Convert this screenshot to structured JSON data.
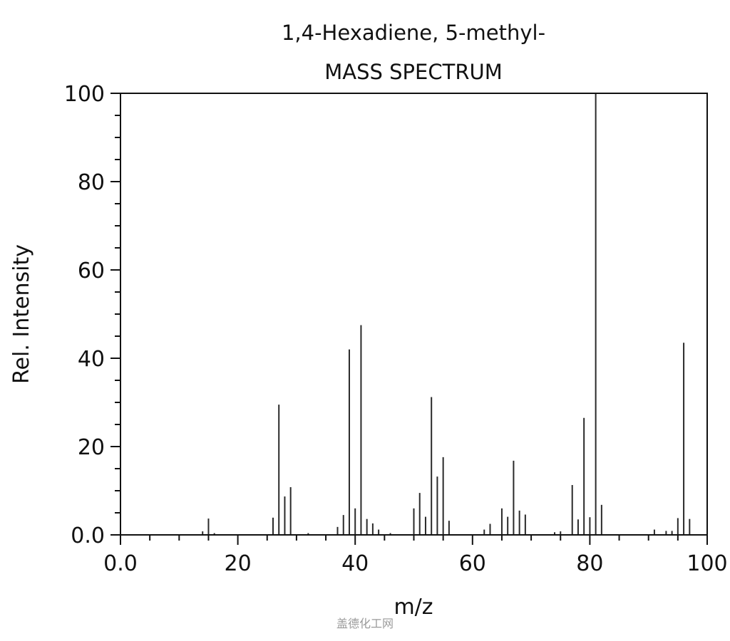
{
  "watermark": "盖德化工网",
  "chart_data": {
    "type": "bar",
    "title": "1,4-Hexadiene, 5-methyl-",
    "subtitle": "MASS SPECTRUM",
    "xlabel": "m/z",
    "ylabel": "Rel. Intensity",
    "xlim": [
      0,
      100
    ],
    "ylim": [
      0,
      100
    ],
    "grid": false,
    "x_ticks": [
      0,
      20,
      40,
      60,
      80,
      100
    ],
    "x_tick_labels": [
      "0.0",
      "20",
      "40",
      "60",
      "80",
      "100"
    ],
    "y_ticks": [
      0,
      20,
      40,
      60,
      80,
      100
    ],
    "y_tick_labels": [
      "0.0",
      "20",
      "40",
      "60",
      "80",
      "100"
    ],
    "bar_color": "#2a2a2a",
    "axis_color": "#111111",
    "x": [
      14,
      15,
      16,
      26,
      27,
      28,
      29,
      32,
      37,
      38,
      39,
      40,
      41,
      42,
      43,
      44,
      46,
      50,
      51,
      52,
      53,
      54,
      55,
      56,
      62,
      63,
      65,
      66,
      67,
      68,
      69,
      74,
      75,
      77,
      78,
      79,
      80,
      81,
      82,
      91,
      93,
      94,
      95,
      96,
      97
    ],
    "values": [
      0.8,
      3.7,
      0.4,
      3.9,
      29.5,
      8.7,
      10.8,
      0.4,
      1.8,
      4.5,
      42,
      6,
      47.5,
      3.6,
      2.6,
      1.2,
      0.4,
      6,
      9.5,
      4.1,
      31.2,
      13.2,
      17.6,
      3.2,
      1.2,
      2.5,
      6,
      4.1,
      16.8,
      5.5,
      4.6,
      0.6,
      0.8,
      11.3,
      3.5,
      26.5,
      4,
      100,
      6.8,
      1.2,
      0.9,
      0.9,
      3.8,
      43.5,
      3.6
    ]
  }
}
